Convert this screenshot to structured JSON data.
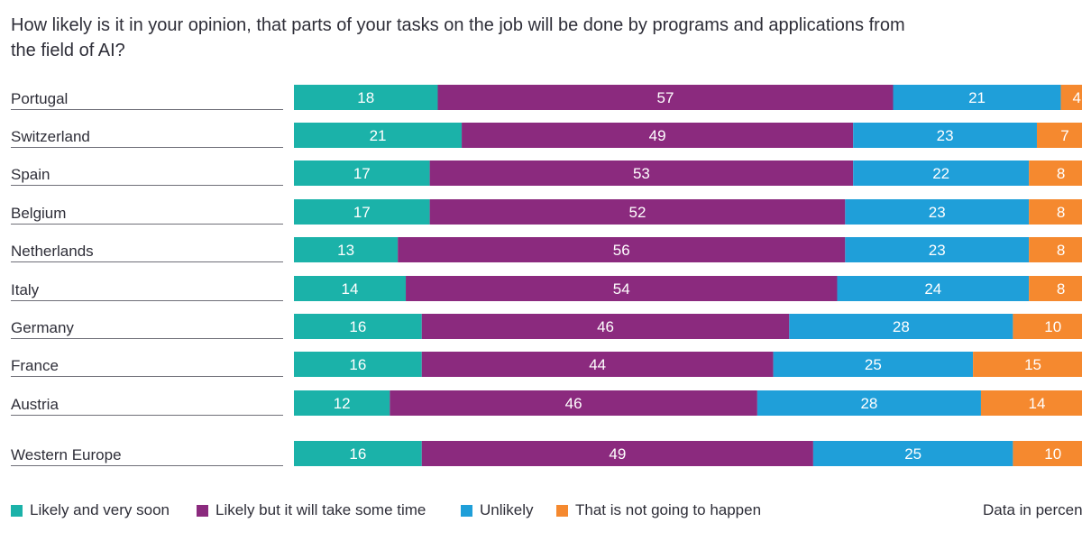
{
  "chart_data": {
    "type": "bar",
    "orientation": "horizontal",
    "stacked": true,
    "title": "How likely is it in your opinion, that parts of your tasks on the job will be done by programs and applications from the field of AI?",
    "categories": [
      "Portugal",
      "Switzerland",
      "Spain",
      "Belgium",
      "Netherlands",
      "Italy",
      "Germany",
      "France",
      "Austria",
      "Western Europe"
    ],
    "series": [
      {
        "name": "Likely and very soon",
        "color": "#1bb2a9",
        "values": [
          18,
          21,
          17,
          17,
          13,
          14,
          16,
          16,
          12,
          16
        ]
      },
      {
        "name": "Likely but it will take some time",
        "color": "#8b2a7e",
        "values": [
          57,
          49,
          53,
          52,
          56,
          54,
          46,
          44,
          46,
          49
        ]
      },
      {
        "name": "Unlikely",
        "color": "#1f9fd9",
        "values": [
          21,
          23,
          22,
          23,
          23,
          24,
          28,
          25,
          28,
          25
        ]
      },
      {
        "name": "That is not going to happen",
        "color": "#f5892f",
        "values": [
          4,
          7,
          8,
          8,
          8,
          8,
          10,
          15,
          14,
          10
        ]
      }
    ],
    "xlim": [
      0,
      100
    ],
    "data_labels": true,
    "grid": false,
    "legend_position": "bottom",
    "unit_note": "Data in percent"
  }
}
